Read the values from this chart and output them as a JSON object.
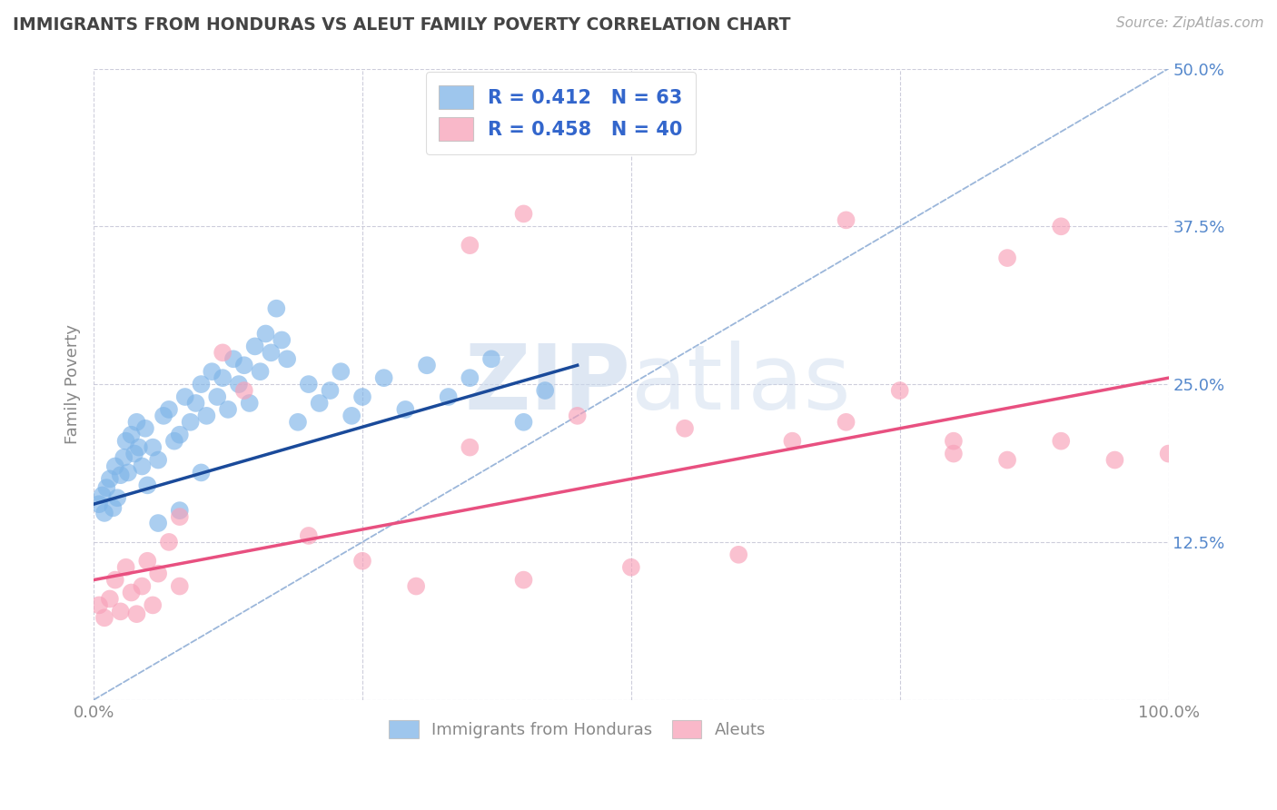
{
  "title": "IMMIGRANTS FROM HONDURAS VS ALEUT FAMILY POVERTY CORRELATION CHART",
  "source": "Source: ZipAtlas.com",
  "ylabel": "Family Poverty",
  "xlim": [
    0,
    100
  ],
  "ylim": [
    0,
    50
  ],
  "blue_R": 0.412,
  "blue_N": 63,
  "pink_R": 0.458,
  "pink_N": 40,
  "blue_color": "#7EB4E8",
  "pink_color": "#F8A0B8",
  "blue_line_color": "#1A4A9A",
  "pink_line_color": "#E85080",
  "diag_line_color": "#8AAAD4",
  "legend_label1": "Immigrants from Honduras",
  "legend_label2": "Aleuts",
  "background_color": "#ffffff",
  "grid_color": "#c8c8d8",
  "blue_scatter": [
    [
      0.5,
      15.5
    ],
    [
      0.8,
      16.2
    ],
    [
      1.0,
      14.8
    ],
    [
      1.2,
      16.8
    ],
    [
      1.5,
      17.5
    ],
    [
      1.8,
      15.2
    ],
    [
      2.0,
      18.5
    ],
    [
      2.2,
      16.0
    ],
    [
      2.5,
      17.8
    ],
    [
      2.8,
      19.2
    ],
    [
      3.0,
      20.5
    ],
    [
      3.2,
      18.0
    ],
    [
      3.5,
      21.0
    ],
    [
      3.8,
      19.5
    ],
    [
      4.0,
      22.0
    ],
    [
      4.2,
      20.0
    ],
    [
      4.5,
      18.5
    ],
    [
      4.8,
      21.5
    ],
    [
      5.0,
      17.0
    ],
    [
      5.5,
      20.0
    ],
    [
      6.0,
      19.0
    ],
    [
      6.5,
      22.5
    ],
    [
      7.0,
      23.0
    ],
    [
      7.5,
      20.5
    ],
    [
      8.0,
      21.0
    ],
    [
      8.5,
      24.0
    ],
    [
      9.0,
      22.0
    ],
    [
      9.5,
      23.5
    ],
    [
      10.0,
      25.0
    ],
    [
      10.5,
      22.5
    ],
    [
      11.0,
      26.0
    ],
    [
      11.5,
      24.0
    ],
    [
      12.0,
      25.5
    ],
    [
      12.5,
      23.0
    ],
    [
      13.0,
      27.0
    ],
    [
      13.5,
      25.0
    ],
    [
      14.0,
      26.5
    ],
    [
      14.5,
      23.5
    ],
    [
      15.0,
      28.0
    ],
    [
      15.5,
      26.0
    ],
    [
      16.0,
      29.0
    ],
    [
      16.5,
      27.5
    ],
    [
      17.0,
      31.0
    ],
    [
      17.5,
      28.5
    ],
    [
      18.0,
      27.0
    ],
    [
      19.0,
      22.0
    ],
    [
      20.0,
      25.0
    ],
    [
      21.0,
      23.5
    ],
    [
      22.0,
      24.5
    ],
    [
      23.0,
      26.0
    ],
    [
      24.0,
      22.5
    ],
    [
      25.0,
      24.0
    ],
    [
      27.0,
      25.5
    ],
    [
      29.0,
      23.0
    ],
    [
      31.0,
      26.5
    ],
    [
      33.0,
      24.0
    ],
    [
      35.0,
      25.5
    ],
    [
      37.0,
      27.0
    ],
    [
      40.0,
      22.0
    ],
    [
      42.0,
      24.5
    ],
    [
      6.0,
      14.0
    ],
    [
      8.0,
      15.0
    ],
    [
      10.0,
      18.0
    ]
  ],
  "pink_scatter": [
    [
      0.5,
      7.5
    ],
    [
      1.0,
      6.5
    ],
    [
      1.5,
      8.0
    ],
    [
      2.0,
      9.5
    ],
    [
      2.5,
      7.0
    ],
    [
      3.0,
      10.5
    ],
    [
      3.5,
      8.5
    ],
    [
      4.0,
      6.8
    ],
    [
      4.5,
      9.0
    ],
    [
      5.0,
      11.0
    ],
    [
      5.5,
      7.5
    ],
    [
      6.0,
      10.0
    ],
    [
      7.0,
      12.5
    ],
    [
      8.0,
      9.0
    ],
    [
      12.0,
      27.5
    ],
    [
      14.0,
      24.5
    ],
    [
      20.0,
      13.0
    ],
    [
      25.0,
      11.0
    ],
    [
      30.0,
      9.0
    ],
    [
      35.0,
      20.0
    ],
    [
      40.0,
      9.5
    ],
    [
      45.0,
      22.5
    ],
    [
      50.0,
      10.5
    ],
    [
      55.0,
      21.5
    ],
    [
      60.0,
      11.5
    ],
    [
      65.0,
      20.5
    ],
    [
      70.0,
      22.0
    ],
    [
      75.0,
      24.5
    ],
    [
      80.0,
      20.5
    ],
    [
      80.0,
      19.5
    ],
    [
      85.0,
      19.0
    ],
    [
      85.0,
      35.0
    ],
    [
      90.0,
      20.5
    ],
    [
      90.0,
      37.5
    ],
    [
      95.0,
      19.0
    ],
    [
      70.0,
      38.0
    ],
    [
      40.0,
      38.5
    ],
    [
      35.0,
      36.0
    ],
    [
      8.0,
      14.5
    ],
    [
      100.0,
      19.5
    ]
  ],
  "blue_line_x": [
    0,
    45
  ],
  "blue_line_y": [
    15.5,
    26.5
  ],
  "pink_line_x": [
    0,
    100
  ],
  "pink_line_y": [
    9.5,
    25.5
  ],
  "diag_line_x": [
    0,
    100
  ],
  "diag_line_y": [
    0,
    50
  ]
}
